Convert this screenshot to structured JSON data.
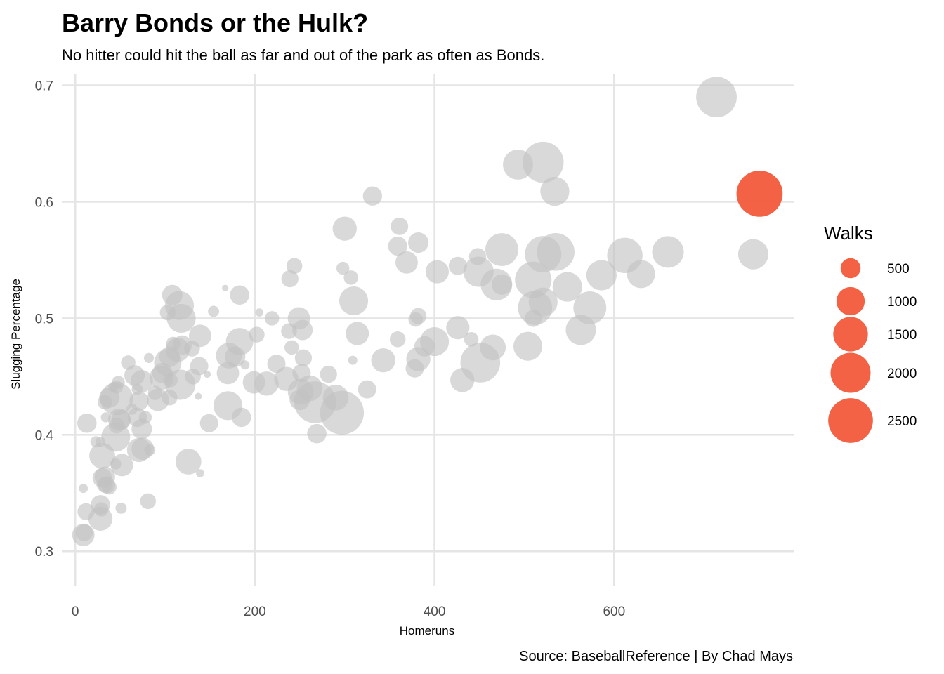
{
  "colors": {
    "highlight": "#f25a3a",
    "other": "#c2c2c2",
    "grid": "#e5e5e5"
  },
  "chart_data": {
    "type": "scatter",
    "title": "Barry Bonds or the Hulk?",
    "subtitle": "No hitter could hit the ball as far and out of the park as often as Bonds.",
    "xlabel": "Homeruns",
    "ylabel": "Slugging Percentage",
    "caption": "Source: BaseballReference | By Chad Mays",
    "xlim": [
      -15,
      800
    ],
    "ylim": [
      0.27,
      0.71
    ],
    "x_ticks": [
      0,
      200,
      400,
      600
    ],
    "y_ticks": [
      0.3,
      0.4,
      0.5,
      0.6,
      0.7
    ],
    "y_tick_labels": [
      "0.3",
      "0.4",
      "0.5",
      "0.6",
      "0.7"
    ],
    "grid": true,
    "legend": {
      "title": "Walks",
      "placement": "right",
      "entries": [
        {
          "label": "500",
          "value": 500
        },
        {
          "label": "1000",
          "value": 1000
        },
        {
          "label": "1500",
          "value": 1500
        },
        {
          "label": "2000",
          "value": 2000
        },
        {
          "label": "2500",
          "value": 2500
        }
      ]
    },
    "highlight": {
      "x": 762,
      "y": 0.607,
      "walks": 2558
    },
    "points": [
      [
        714,
        0.69,
        1975
      ],
      [
        521,
        0.634,
        2019
      ],
      [
        493,
        0.632,
        1091
      ],
      [
        534,
        0.609,
        1011
      ],
      [
        331,
        0.605,
        441
      ],
      [
        300,
        0.577,
        700
      ],
      [
        361,
        0.579,
        368
      ],
      [
        382,
        0.565,
        500
      ],
      [
        359,
        0.562,
        441
      ],
      [
        369,
        0.548,
        600
      ],
      [
        475,
        0.559,
        1300
      ],
      [
        521,
        0.555,
        1600
      ],
      [
        535,
        0.557,
        1700
      ],
      [
        612,
        0.554,
        1500
      ],
      [
        660,
        0.557,
        1200
      ],
      [
        755,
        0.555,
        1100
      ],
      [
        586,
        0.537,
        1100
      ],
      [
        630,
        0.538,
        950
      ],
      [
        403,
        0.54,
        650
      ],
      [
        426,
        0.545,
        400
      ],
      [
        449,
        0.54,
        1100
      ],
      [
        448,
        0.553,
        350
      ],
      [
        510,
        0.533,
        1600
      ],
      [
        548,
        0.527,
        1050
      ],
      [
        469,
        0.529,
        1200
      ],
      [
        475,
        0.529,
        500
      ],
      [
        512,
        0.509,
        1400
      ],
      [
        521,
        0.514,
        1000
      ],
      [
        573,
        0.509,
        1300
      ],
      [
        563,
        0.49,
        1100
      ],
      [
        510,
        0.5,
        350
      ],
      [
        426,
        0.492,
        650
      ],
      [
        465,
        0.475,
        800
      ],
      [
        451,
        0.462,
        1900
      ],
      [
        504,
        0.476,
        1000
      ],
      [
        400,
        0.48,
        1000
      ],
      [
        389,
        0.476,
        500
      ],
      [
        382,
        0.502,
        320
      ],
      [
        379,
        0.499,
        250
      ],
      [
        382,
        0.465,
        700
      ],
      [
        378,
        0.457,
        400
      ],
      [
        359,
        0.482,
        300
      ],
      [
        343,
        0.464,
        700
      ],
      [
        431,
        0.447,
        700
      ],
      [
        441,
        0.482,
        250
      ],
      [
        314,
        0.487,
        650
      ],
      [
        310,
        0.515,
        1000
      ],
      [
        307,
        0.535,
        250
      ],
      [
        298,
        0.543,
        200
      ],
      [
        239,
        0.534,
        350
      ],
      [
        244,
        0.545,
        300
      ],
      [
        249,
        0.5,
        600
      ],
      [
        253,
        0.49,
        500
      ],
      [
        238,
        0.489,
        300
      ],
      [
        241,
        0.475,
        250
      ],
      [
        254,
        0.466,
        350
      ],
      [
        235,
        0.448,
        700
      ],
      [
        252,
        0.453,
        400
      ],
      [
        251,
        0.437,
        800
      ],
      [
        250,
        0.43,
        500
      ],
      [
        261,
        0.44,
        800
      ],
      [
        267,
        0.428,
        2100
      ],
      [
        290,
        0.432,
        800
      ],
      [
        297,
        0.419,
        2300
      ],
      [
        282,
        0.452,
        350
      ],
      [
        325,
        0.439,
        400
      ],
      [
        269,
        0.401,
        450
      ],
      [
        309,
        0.464,
        100
      ],
      [
        224,
        0.461,
        400
      ],
      [
        213,
        0.444,
        700
      ],
      [
        199,
        0.445,
        600
      ],
      [
        219,
        0.5,
        250
      ],
      [
        202,
        0.486,
        300
      ],
      [
        205,
        0.505,
        80
      ],
      [
        183,
        0.48,
        900
      ],
      [
        178,
        0.467,
        500
      ],
      [
        171,
        0.468,
        800
      ],
      [
        170,
        0.453,
        600
      ],
      [
        170,
        0.425,
        1000
      ],
      [
        185,
        0.415,
        450
      ],
      [
        189,
        0.46,
        100
      ],
      [
        183,
        0.52,
        450
      ],
      [
        167,
        0.526,
        50
      ],
      [
        154,
        0.506,
        150
      ],
      [
        149,
        0.41,
        400
      ],
      [
        147,
        0.452,
        60
      ],
      [
        139,
        0.485,
        600
      ],
      [
        138,
        0.459,
        400
      ],
      [
        137,
        0.433,
        60
      ],
      [
        130,
        0.474,
        300
      ],
      [
        131,
        0.45,
        300
      ],
      [
        126,
        0.377,
        800
      ],
      [
        139,
        0.367,
        80
      ],
      [
        118,
        0.5,
        1000
      ],
      [
        116,
        0.511,
        1000
      ],
      [
        108,
        0.52,
        500
      ],
      [
        119,
        0.477,
        450
      ],
      [
        114,
        0.473,
        700
      ],
      [
        109,
        0.478,
        250
      ],
      [
        117,
        0.443,
        1100
      ],
      [
        105,
        0.467,
        500
      ],
      [
        106,
        0.447,
        250
      ],
      [
        103,
        0.462,
        900
      ],
      [
        97,
        0.453,
        500
      ],
      [
        103,
        0.505,
        300
      ],
      [
        105,
        0.432,
        300
      ],
      [
        96,
        0.449,
        700
      ],
      [
        92,
        0.43,
        600
      ],
      [
        89,
        0.436,
        250
      ],
      [
        82,
        0.466,
        120
      ],
      [
        83,
        0.387,
        150
      ],
      [
        74,
        0.446,
        600
      ],
      [
        66,
        0.451,
        500
      ],
      [
        69,
        0.439,
        150
      ],
      [
        71,
        0.429,
        450
      ],
      [
        69,
        0.415,
        450
      ],
      [
        74,
        0.405,
        500
      ],
      [
        78,
        0.415,
        200
      ],
      [
        71,
        0.387,
        700
      ],
      [
        75,
        0.388,
        600
      ],
      [
        81,
        0.343,
        300
      ],
      [
        59,
        0.462,
        250
      ],
      [
        48,
        0.445,
        200
      ],
      [
        46,
        0.441,
        200
      ],
      [
        42,
        0.441,
        120
      ],
      [
        38,
        0.432,
        500
      ],
      [
        46,
        0.431,
        1300
      ],
      [
        33,
        0.428,
        250
      ],
      [
        49,
        0.413,
        600
      ],
      [
        51,
        0.413,
        450
      ],
      [
        46,
        0.408,
        300
      ],
      [
        34,
        0.415,
        120
      ],
      [
        45,
        0.398,
        1000
      ],
      [
        63,
        0.422,
        150
      ],
      [
        52,
        0.374,
        600
      ],
      [
        45,
        0.375,
        150
      ],
      [
        30,
        0.382,
        800
      ],
      [
        28,
        0.394,
        120
      ],
      [
        23,
        0.394,
        150
      ],
      [
        30,
        0.363,
        450
      ],
      [
        33,
        0.364,
        500
      ],
      [
        33,
        0.357,
        300
      ],
      [
        35,
        0.357,
        350
      ],
      [
        38,
        0.355,
        250
      ],
      [
        28,
        0.34,
        450
      ],
      [
        51,
        0.337,
        150
      ],
      [
        29,
        0.336,
        250
      ],
      [
        12,
        0.334,
        350
      ],
      [
        28,
        0.328,
        700
      ],
      [
        9,
        0.354,
        100
      ],
      [
        10,
        0.316,
        350
      ],
      [
        9,
        0.314,
        600
      ],
      [
        13,
        0.41,
        450
      ]
    ]
  }
}
